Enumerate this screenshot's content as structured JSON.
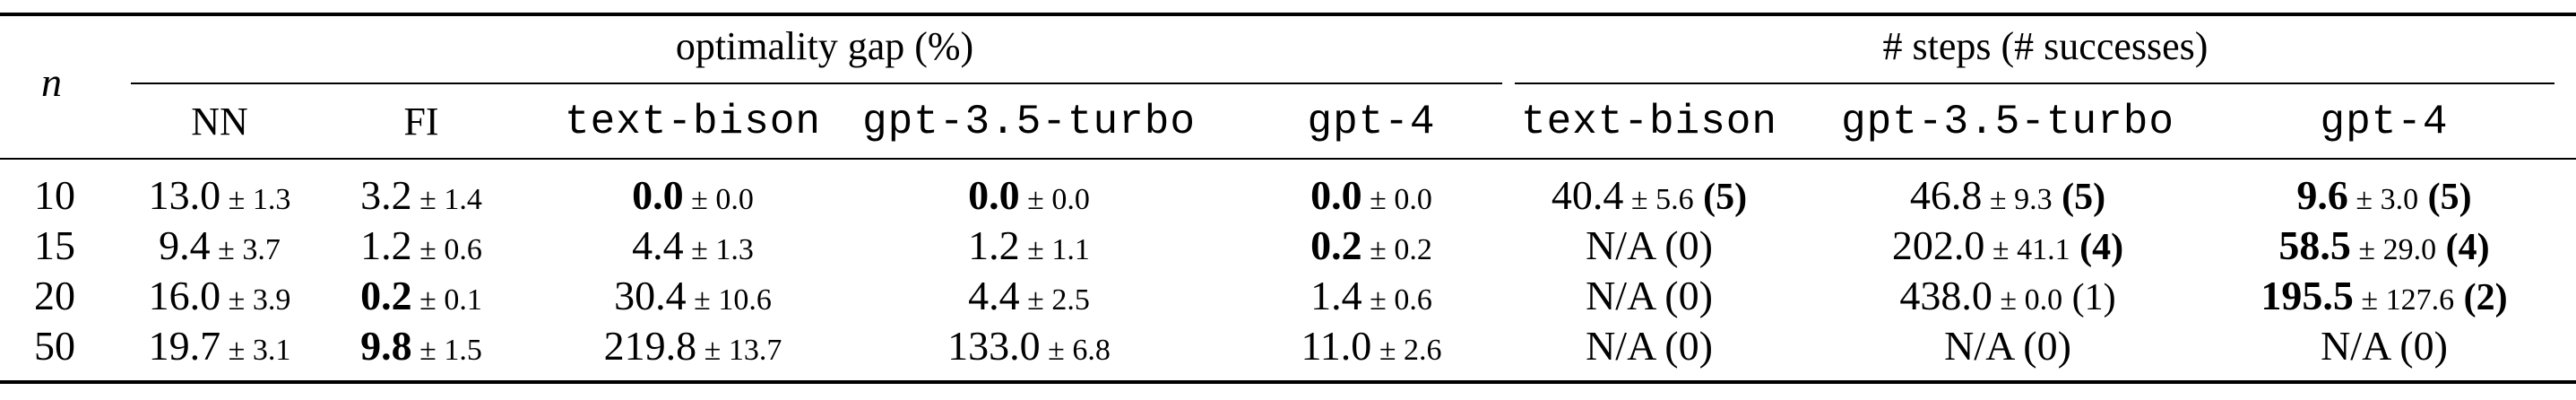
{
  "caption_fragment": "",
  "header": {
    "n_label": "n",
    "group_gap": "optimality gap (%)",
    "group_steps": "# steps (# successes)",
    "gap_cols": [
      "NN",
      "FI",
      "text-bison",
      "gpt-3.5-turbo",
      "gpt-4"
    ],
    "step_cols": [
      "text-bison",
      "gpt-3.5-turbo",
      "gpt-4"
    ]
  },
  "rows": [
    {
      "n": "10",
      "gap": [
        {
          "v": "13.0",
          "pm": "± 1.3",
          "bold": false
        },
        {
          "v": "3.2",
          "pm": "± 1.4",
          "bold": false
        },
        {
          "v": "0.0",
          "pm": "± 0.0",
          "bold": true
        },
        {
          "v": "0.0",
          "pm": "± 0.0",
          "bold": true
        },
        {
          "v": "0.0",
          "pm": "± 0.0",
          "bold": true
        }
      ],
      "steps": [
        {
          "v": "40.4",
          "pm": "± 5.6",
          "cnt": "(5)",
          "bold": false,
          "cnt_bold": true
        },
        {
          "v": "46.8",
          "pm": "± 9.3",
          "cnt": "(5)",
          "bold": false,
          "cnt_bold": true
        },
        {
          "v": "9.6",
          "pm": "± 3.0",
          "cnt": "(5)",
          "bold": true,
          "cnt_bold": true
        }
      ]
    },
    {
      "n": "15",
      "gap": [
        {
          "v": "9.4",
          "pm": "± 3.7",
          "bold": false
        },
        {
          "v": "1.2",
          "pm": "± 0.6",
          "bold": false
        },
        {
          "v": "4.4",
          "pm": "± 1.3",
          "bold": false
        },
        {
          "v": "1.2",
          "pm": "± 1.1",
          "bold": false
        },
        {
          "v": "0.2",
          "pm": "± 0.2",
          "bold": true
        }
      ],
      "steps": [
        {
          "v": "N/A (0)",
          "pm": "",
          "cnt": "",
          "bold": false,
          "cnt_bold": false
        },
        {
          "v": "202.0",
          "pm": "± 41.1",
          "cnt": "(4)",
          "bold": false,
          "cnt_bold": true
        },
        {
          "v": "58.5",
          "pm": "± 29.0",
          "cnt": "(4)",
          "bold": true,
          "cnt_bold": true
        }
      ]
    },
    {
      "n": "20",
      "gap": [
        {
          "v": "16.0",
          "pm": "± 3.9",
          "bold": false
        },
        {
          "v": "0.2",
          "pm": "± 0.1",
          "bold": true
        },
        {
          "v": "30.4",
          "pm": "± 10.6",
          "bold": false
        },
        {
          "v": "4.4",
          "pm": "± 2.5",
          "bold": false
        },
        {
          "v": "1.4",
          "pm": "± 0.6",
          "bold": false
        }
      ],
      "steps": [
        {
          "v": "N/A (0)",
          "pm": "",
          "cnt": "",
          "bold": false,
          "cnt_bold": false
        },
        {
          "v": "438.0",
          "pm": "± 0.0",
          "cnt": "(1)",
          "bold": false,
          "cnt_bold": false
        },
        {
          "v": "195.5",
          "pm": "± 127.6",
          "cnt": "(2)",
          "bold": true,
          "cnt_bold": true
        }
      ]
    },
    {
      "n": "50",
      "gap": [
        {
          "v": "19.7",
          "pm": "± 3.1",
          "bold": false
        },
        {
          "v": "9.8",
          "pm": "± 1.5",
          "bold": true
        },
        {
          "v": "219.8",
          "pm": "± 13.7",
          "bold": false
        },
        {
          "v": "133.0",
          "pm": "± 6.8",
          "bold": false
        },
        {
          "v": "11.0",
          "pm": "± 2.6",
          "bold": false
        }
      ],
      "steps": [
        {
          "v": "N/A (0)",
          "pm": "",
          "cnt": "",
          "bold": false,
          "cnt_bold": false
        },
        {
          "v": "N/A (0)",
          "pm": "",
          "cnt": "",
          "bold": false,
          "cnt_bold": false
        },
        {
          "v": "N/A (0)",
          "pm": "",
          "cnt": "",
          "bold": false,
          "cnt_bold": false
        }
      ]
    }
  ]
}
